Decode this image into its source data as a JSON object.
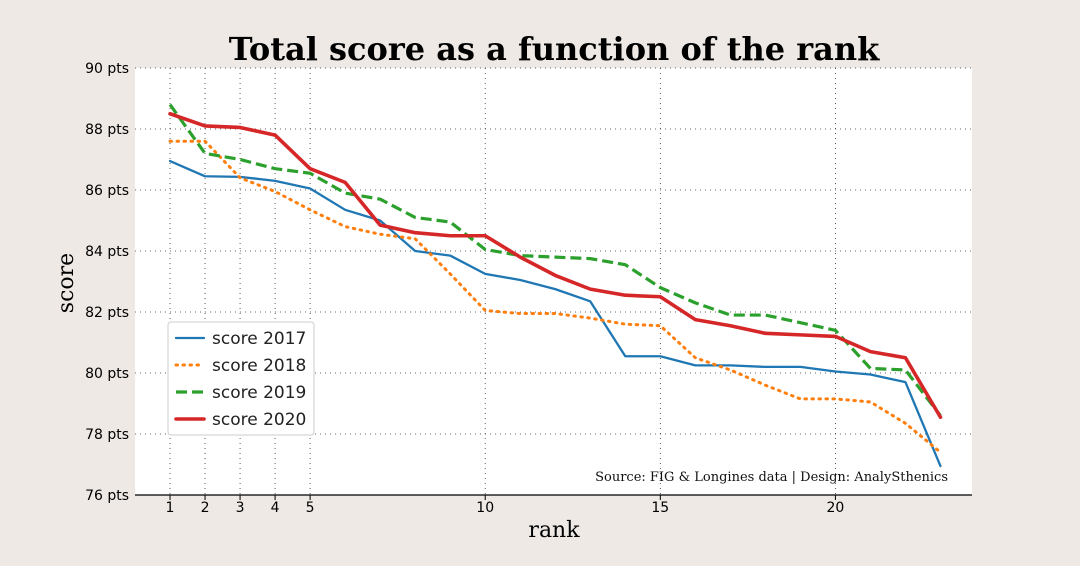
{
  "chart_data": {
    "type": "line",
    "title": "Total score as a function of the rank",
    "xlabel": "rank",
    "ylabel": "score",
    "xlim": [
      0,
      23.9
    ],
    "ylim": [
      76,
      90
    ],
    "x_ticks": [
      1,
      2,
      3,
      4,
      5,
      10,
      15,
      20
    ],
    "y_ticks": [
      76,
      78,
      80,
      82,
      84,
      86,
      88,
      90
    ],
    "y_tick_suffix": " pts",
    "grid": true,
    "legend_position": "lower-left",
    "source_note": "Source: FIG & Longines data  |  Design: AnalySthenics",
    "x": [
      1,
      2,
      3,
      4,
      5,
      6,
      7,
      8,
      9,
      10,
      11,
      12,
      13,
      14,
      15,
      16,
      17,
      18,
      19,
      20,
      21,
      22,
      23
    ],
    "series": [
      {
        "name": "score 2017",
        "color": "#1f77b4",
        "dash": "solid",
        "values": [
          86.95,
          86.45,
          86.43,
          86.3,
          86.05,
          85.35,
          85.0,
          84.0,
          83.85,
          83.25,
          83.05,
          82.75,
          82.35,
          80.55,
          80.55,
          80.25,
          80.25,
          80.2,
          80.2,
          80.05,
          79.95,
          79.7,
          76.95
        ]
      },
      {
        "name": "score 2018",
        "color": "#ff7f0e",
        "dash": "dotted",
        "values": [
          87.6,
          87.6,
          86.4,
          85.95,
          85.35,
          84.8,
          84.55,
          84.4,
          83.25,
          82.05,
          81.95,
          81.95,
          81.8,
          81.6,
          81.55,
          80.5,
          80.1,
          79.6,
          79.15,
          79.15,
          79.05,
          78.35,
          77.4
        ]
      },
      {
        "name": "score 2019",
        "color": "#2ca02c",
        "dash": "dashed",
        "values": [
          88.8,
          87.2,
          87.0,
          86.7,
          86.55,
          85.9,
          85.7,
          85.1,
          84.95,
          84.05,
          83.85,
          83.8,
          83.75,
          83.55,
          82.8,
          82.3,
          81.9,
          81.9,
          81.65,
          81.4,
          80.15,
          80.1,
          78.6
        ]
      },
      {
        "name": "score 2020",
        "color": "#d62728",
        "dash": "solid-thick",
        "values": [
          88.5,
          88.1,
          88.05,
          87.8,
          86.7,
          86.25,
          84.85,
          84.6,
          84.5,
          84.5,
          83.8,
          83.2,
          82.75,
          82.55,
          82.5,
          81.75,
          81.55,
          81.3,
          81.25,
          81.2,
          80.7,
          80.5,
          78.55
        ]
      }
    ]
  }
}
